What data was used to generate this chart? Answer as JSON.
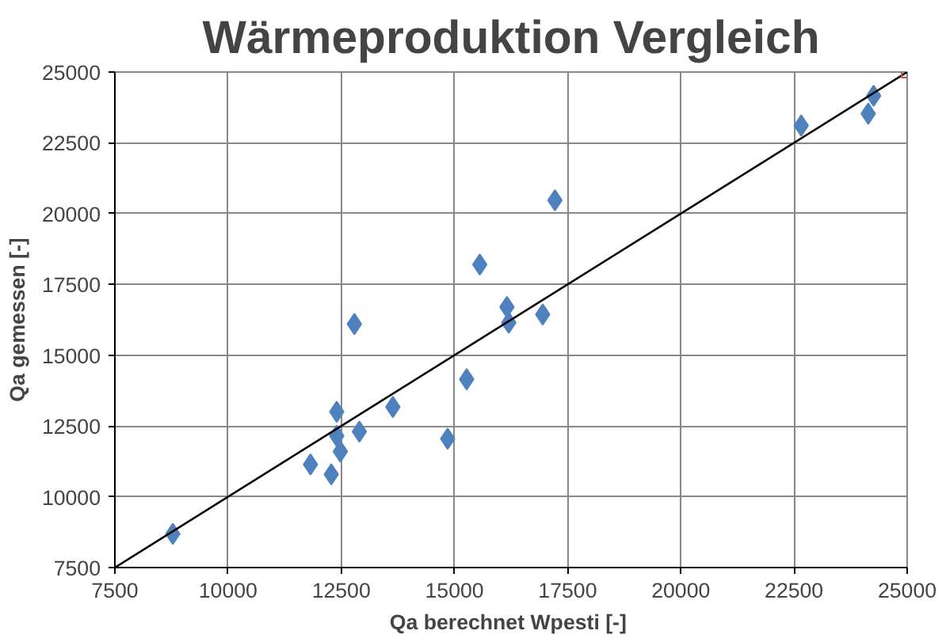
{
  "chart_data": {
    "type": "scatter",
    "title": "Wärmeproduktion Vergleich",
    "xlabel": "Qa berechnet Wpesti  [-]",
    "ylabel": "Qa gemessen [-]",
    "xlim": [
      7500,
      25000
    ],
    "ylim": [
      7500,
      25000
    ],
    "xticks": [
      7500,
      10000,
      12500,
      15000,
      17500,
      20000,
      22500,
      25000
    ],
    "yticks": [
      7500,
      10000,
      12500,
      15000,
      17500,
      20000,
      22500,
      25000
    ],
    "grid": true,
    "series": [
      {
        "marker": "diamond",
        "color": "#4f81bd",
        "x": [
          8780,
          11820,
          12280,
          12400,
          12400,
          12480,
          12790,
          12900,
          13640,
          14850,
          15270,
          15560,
          16160,
          16200,
          16950,
          17220,
          22660,
          24260,
          24140
        ],
        "values": [
          8690,
          11140,
          10790,
          13000,
          12150,
          11600,
          16100,
          12300,
          13170,
          12050,
          14150,
          18200,
          16700,
          16150,
          16440,
          20470,
          23110,
          24160,
          23530
        ]
      },
      {
        "type": "line",
        "marker": "none",
        "color": "#000000",
        "x": [
          7500,
          25000
        ],
        "values": [
          7500,
          25000
        ]
      },
      {
        "marker": "square",
        "color": "#c0504d",
        "x": [
          25000
        ],
        "values": [
          25000
        ]
      }
    ]
  }
}
